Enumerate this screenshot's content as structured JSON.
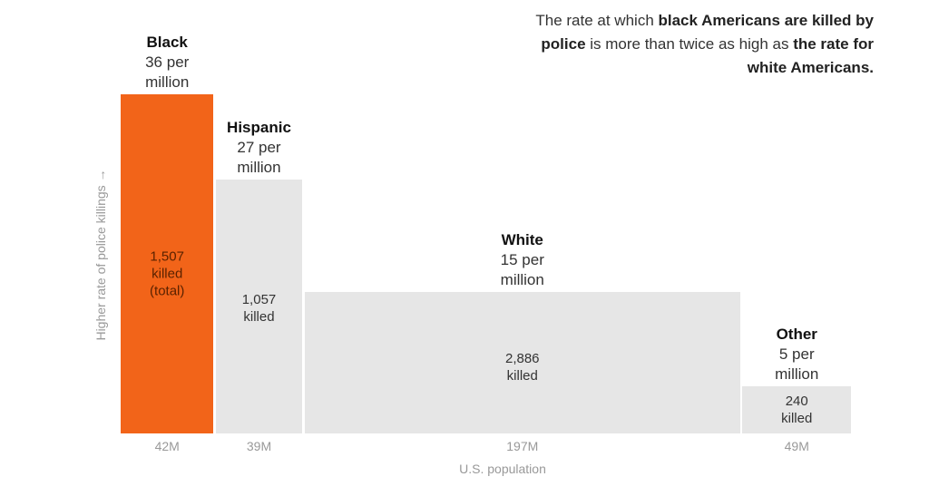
{
  "chart_data": {
    "type": "bar",
    "subtype": "variable-width",
    "title_parts": [
      {
        "text": "The rate at which ",
        "bold": false
      },
      {
        "text": "black Americans are killed by police",
        "bold": true
      },
      {
        "text": " is more than twice as high as ",
        "bold": false
      },
      {
        "text": "the rate for white Americans.",
        "bold": true
      }
    ],
    "ylabel": "Higher rate of police killings →",
    "xlabel": "U.S. population",
    "categories": [
      "Black",
      "Hispanic",
      "White",
      "Other"
    ],
    "series": [
      {
        "name": "Rate per million",
        "values": [
          36,
          27,
          15,
          5
        ]
      },
      {
        "name": "Killed",
        "values": [
          1507,
          1057,
          2886,
          240
        ]
      },
      {
        "name": "Population (M)",
        "values": [
          42,
          39,
          197,
          49
        ]
      }
    ],
    "bars": [
      {
        "name": "Black",
        "rate_line1": "36 per",
        "rate_line2": "million",
        "killed_line1": "1,507",
        "killed_line2": "killed",
        "killed_line3": "(total)",
        "population_label": "42M",
        "color": "#f26419",
        "text_color": "#5a2200"
      },
      {
        "name": "Hispanic",
        "rate_line1": "27 per",
        "rate_line2": "million",
        "killed_line1": "1,057",
        "killed_line2": "killed",
        "killed_line3": "",
        "population_label": "39M",
        "color": "#e6e6e6",
        "text_color": "#333333"
      },
      {
        "name": "White",
        "rate_line1": "15 per",
        "rate_line2": "million",
        "killed_line1": "2,886",
        "killed_line2": "killed",
        "killed_line3": "",
        "population_label": "197M",
        "color": "#e6e6e6",
        "text_color": "#333333"
      },
      {
        "name": "Other",
        "rate_line1": "5 per",
        "rate_line2": "million",
        "killed_line1": "240",
        "killed_line2": "killed",
        "killed_line3": "",
        "population_label": "49M",
        "color": "#e6e6e6",
        "text_color": "#333333"
      }
    ],
    "ylim": [
      0,
      36
    ]
  }
}
